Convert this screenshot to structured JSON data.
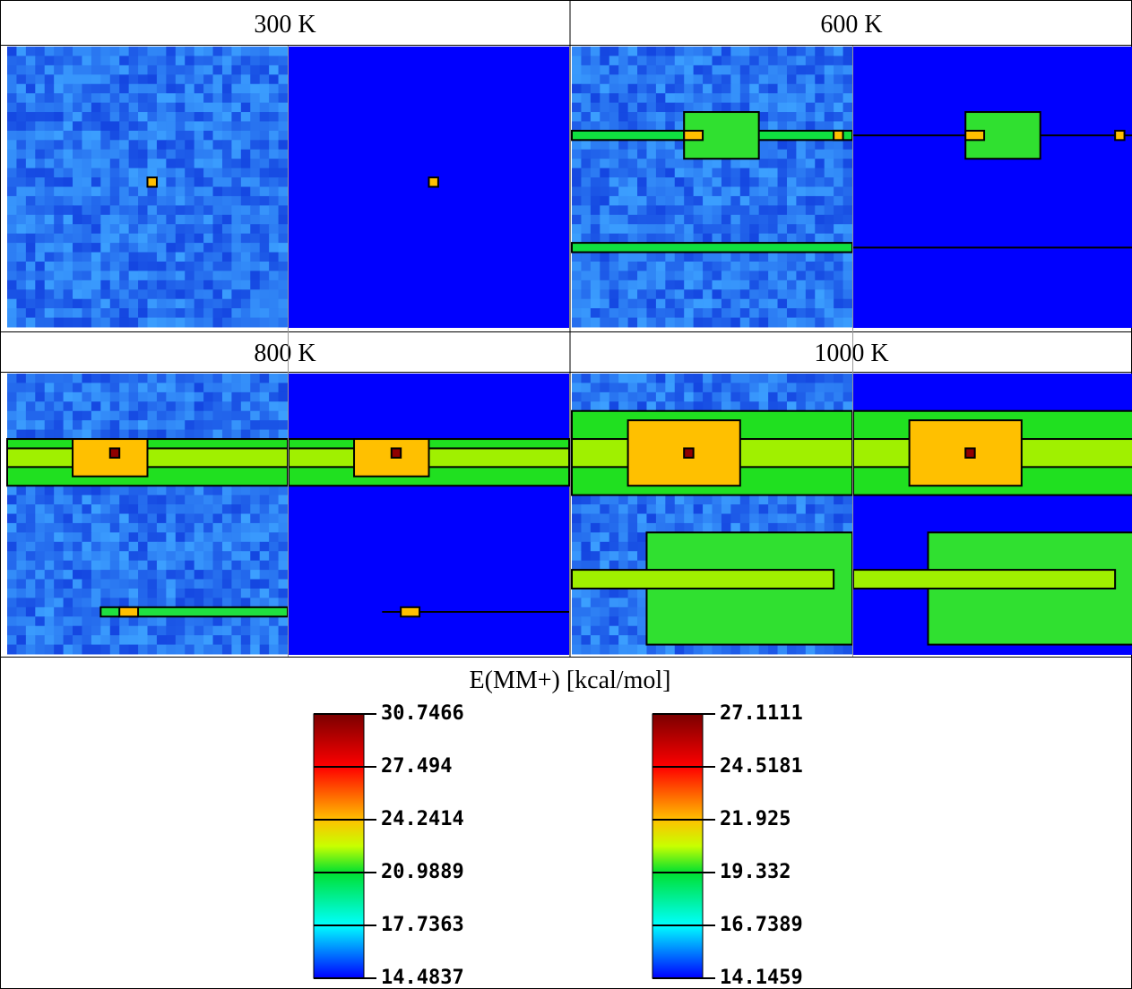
{
  "panels": [
    {
      "title": "300 K"
    },
    {
      "title": "600 K"
    },
    {
      "title": "800 K"
    },
    {
      "title": "1000 K"
    }
  ],
  "colorbar": {
    "title": "E(MM+) [kcal/mol]",
    "scales": [
      {
        "ticks": [
          "30.7466",
          "27.494",
          "24.2414",
          "20.9889",
          "17.7363",
          "14.4837"
        ]
      },
      {
        "ticks": [
          "27.1111",
          "24.5181",
          "21.925",
          "19.332",
          "16.7389",
          "14.1459"
        ]
      }
    ]
  }
}
